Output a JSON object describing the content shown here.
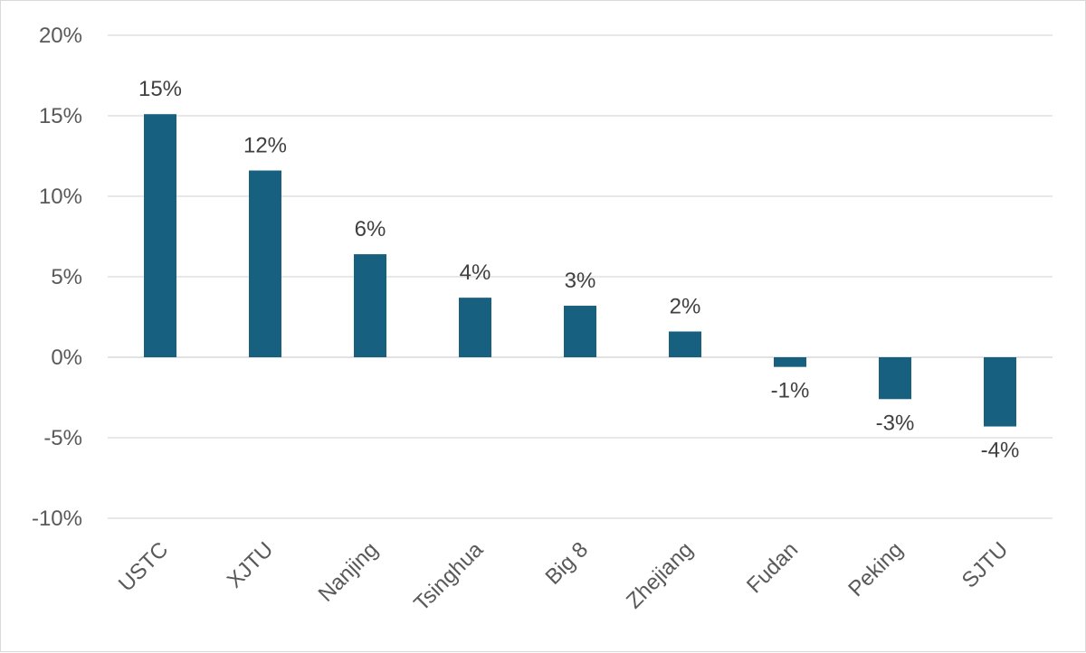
{
  "chart_data": {
    "type": "bar",
    "title": "",
    "xlabel": "",
    "ylabel": "",
    "categories": [
      "USTC",
      "XJTU",
      "Nanjing",
      "Tsinghua",
      "Big 8",
      "Zhejiang",
      "Fudan",
      "Peking",
      "SJTU"
    ],
    "values": [
      15.1,
      11.6,
      6.4,
      3.7,
      3.2,
      1.6,
      -0.6,
      -2.6,
      -4.3
    ],
    "data_labels": [
      "15%",
      "12%",
      "6%",
      "4%",
      "3%",
      "2%",
      "-1%",
      "-3%",
      "-4%"
    ],
    "ylim": [
      -10,
      20
    ],
    "yticks": [
      -10,
      -5,
      0,
      5,
      10,
      15,
      20
    ],
    "ytick_labels": [
      "-10%",
      "-5%",
      "0%",
      "5%",
      "10%",
      "15%",
      "20%"
    ],
    "grid": true,
    "legend": "none",
    "bar_color": "#17607f",
    "grid_color": "#d9d9d9"
  }
}
